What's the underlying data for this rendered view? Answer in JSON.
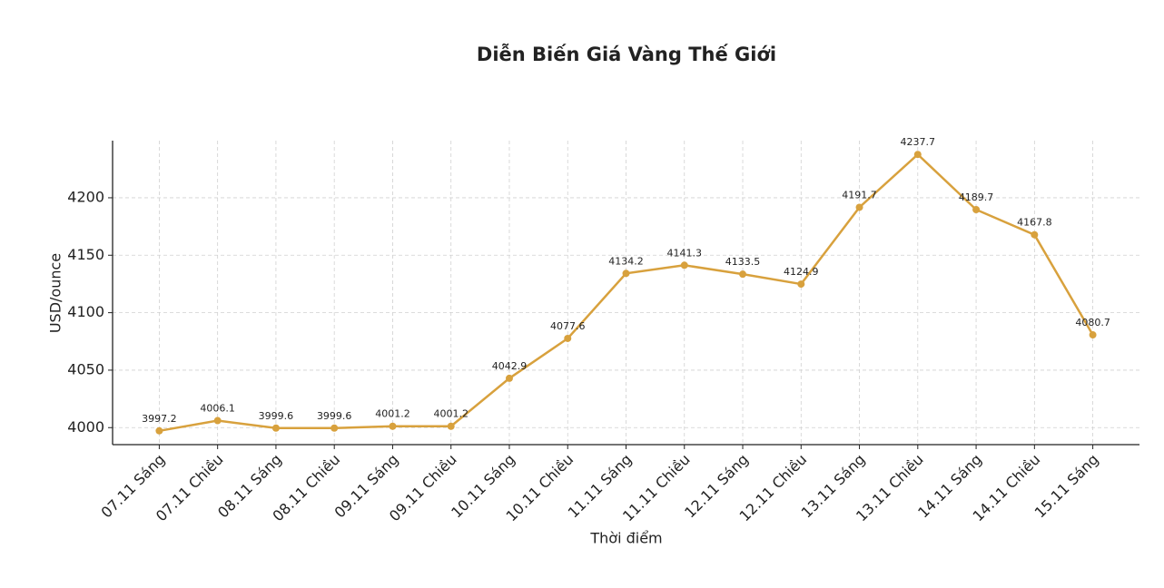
{
  "chart_data": {
    "type": "line",
    "title": "Diễn Biến Giá Vàng Thế Giới",
    "x_label": "Thời điểm",
    "y_label": "USD/ounce",
    "categories": [
      "07.11 Sáng",
      "07.11 Chiều",
      "08.11 Sáng",
      "08.11 Chiều",
      "09.11 Sáng",
      "09.11 Chiều",
      "10.11 Sáng",
      "10.11 Chiều",
      "11.11 Sáng",
      "11.11 Chiều",
      "12.11 Sáng",
      "12.11 Chiều",
      "13.11 Sáng",
      "13.11 Chiều",
      "14.11 Sáng",
      "14.11 Chiều",
      "15.11 Sáng"
    ],
    "values": [
      3997.2,
      4006.1,
      3999.6,
      3999.6,
      4001.2,
      4001.2,
      4042.9,
      4077.6,
      4134.2,
      4141.3,
      4133.5,
      4124.9,
      4191.7,
      4237.7,
      4189.7,
      4167.8,
      4080.7
    ],
    "color": "#d8a13d",
    "ylim": [
      3985.2,
      4249.7
    ],
    "yticks": [
      4000,
      4050,
      4100,
      4150,
      4200
    ],
    "grid": true
  }
}
